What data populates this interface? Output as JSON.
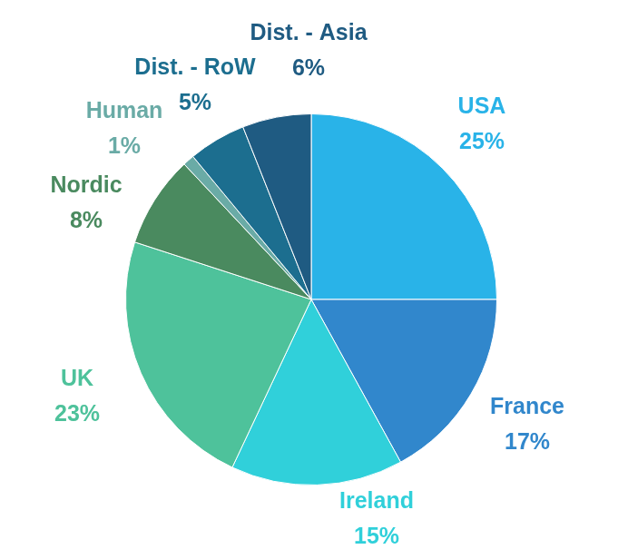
{
  "chart_data": {
    "type": "pie",
    "categories": [
      "USA",
      "France",
      "Ireland",
      "UK",
      "Nordic",
      "Human",
      "Dist. - RoW",
      "Dist. - Asia"
    ],
    "values": [
      25,
      17,
      15,
      23,
      8,
      1,
      5,
      6
    ],
    "value_labels": [
      "25%",
      "17%",
      "15%",
      "23%",
      "8%",
      "1%",
      "5%",
      "6%"
    ],
    "colors": [
      "#29b3e8",
      "#3187cc",
      "#30d0da",
      "#4ec29b",
      "#4a8a5f",
      "#6aaba6",
      "#1c6e8f",
      "#1f5b82"
    ],
    "data_labels": true
  }
}
